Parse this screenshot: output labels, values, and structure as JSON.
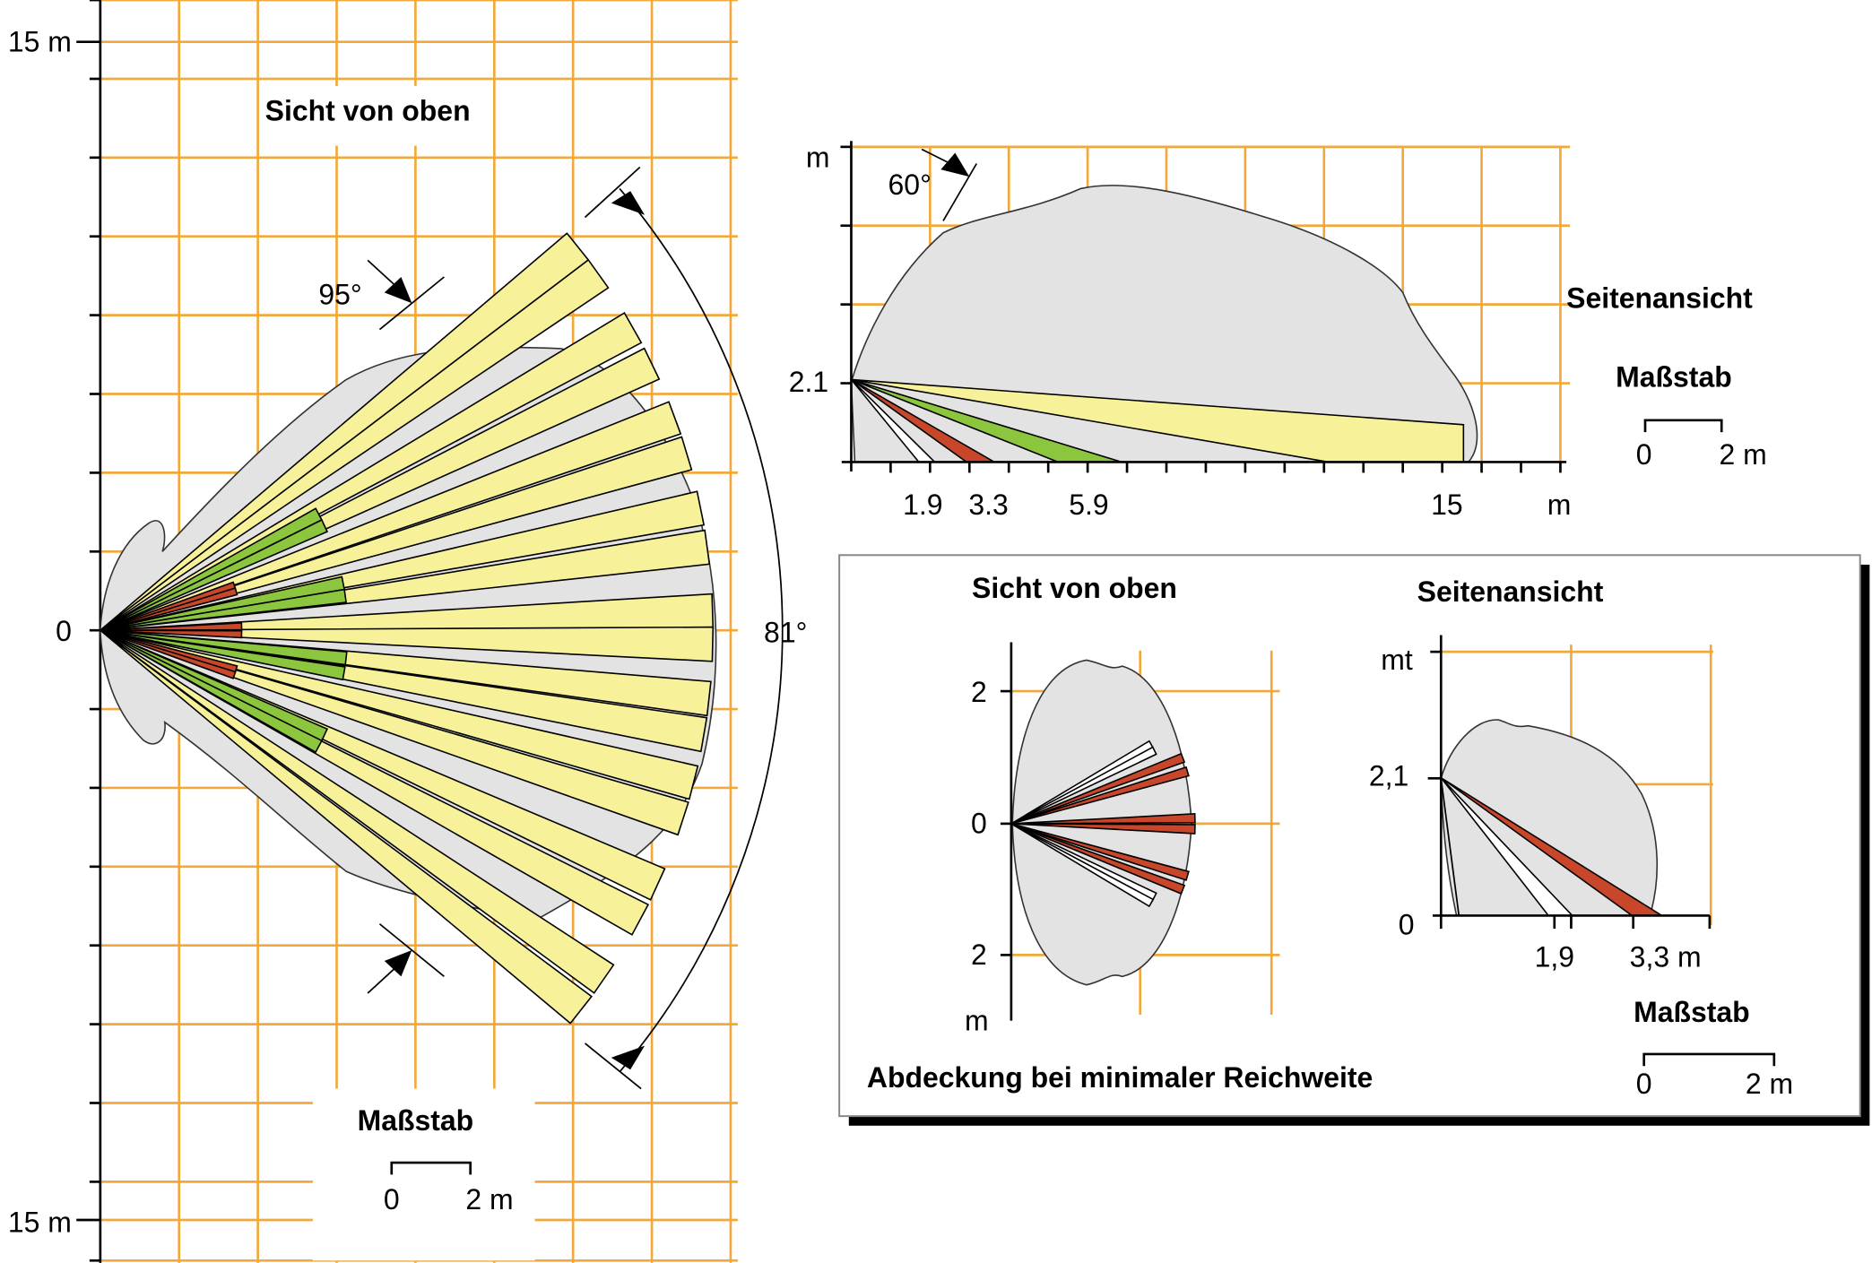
{
  "colors": {
    "grid": "#f2a93b",
    "coverage": "#e3e3e3",
    "far_zone": "#f7f29a",
    "mid_zone": "#8cc63f",
    "near_zone": "#c8472a",
    "min_zone": "#ffffff"
  },
  "top_view": {
    "title": "Sicht von oben",
    "y_top_label": "15 m",
    "y_zero_label": "0",
    "y_bottom_label": "15 m",
    "angle_narrow": "95°",
    "angle_wide": "81°",
    "scale_title": "Maßstab",
    "scale_zero": "0",
    "scale_end": "2 m",
    "beams": {
      "far": {
        "range_m": 15.6,
        "angles_deg": [
          38.8,
          35.6,
          29.6,
          25.8,
          20.3,
          16.8,
          11.5,
          7.8,
          1.8,
          -1.3,
          -6.4,
          -9.8,
          -14.4,
          -17.9,
          -24.5,
          -28.2,
          -34.7,
          -38.3
        ]
      },
      "mid": {
        "range_m": 6.3,
        "angles_deg": [
          28,
          25,
          11,
          8,
          -6.5,
          -10,
          -25,
          -28
        ]
      },
      "near": {
        "range_m": 3.6,
        "angles_deg": [
          18.5,
          16,
          1.6,
          -1.6,
          -16,
          -18.5
        ]
      }
    }
  },
  "side_view": {
    "title": "Seitenansicht",
    "y_unit": "m",
    "mount_height_label": "2.1",
    "angle": "60°",
    "x_ticks": [
      "1.9",
      "3.3",
      "5.9",
      "15"
    ],
    "x_unit": "m",
    "scale_title": "Maßstab",
    "scale_zero": "0",
    "scale_end": "2 m"
  },
  "inset": {
    "caption": "Abdeckung bei minimaler Reichweite",
    "top_title": "Sicht von oben",
    "top_y_labels": [
      "2",
      "0",
      "2"
    ],
    "top_unit": "m",
    "side_title": "Seitenansicht",
    "side_y_unit": "mt",
    "side_mount_label": "2,1",
    "side_zero": "0",
    "side_x_ticks": [
      "1,9",
      "3,3 m"
    ],
    "scale_title": "Maßstab",
    "scale_zero": "0",
    "scale_end": "2 m",
    "beams": {
      "min": {
        "range_m": 2.45,
        "angles_deg": [
          29.5,
          27,
          -27,
          -29.5
        ]
      },
      "near": {
        "range_m": 2.8,
        "angles_deg": [
          21,
          16.5,
          1.7,
          -1.7,
          -16.5,
          -21
        ]
      }
    }
  }
}
